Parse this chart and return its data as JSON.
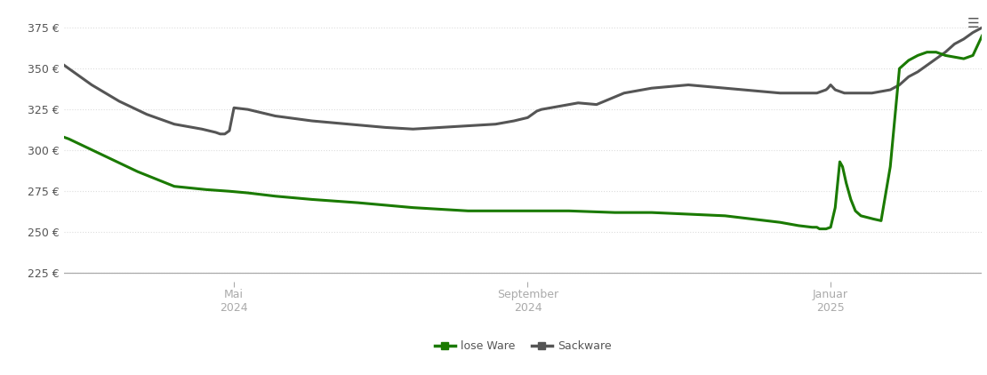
{
  "background_color": "#ffffff",
  "grid_color": "#dddddd",
  "ylim": [
    220,
    385
  ],
  "yticks": [
    225,
    250,
    275,
    300,
    325,
    350,
    375
  ],
  "x_tick_labels": [
    [
      "Mai\n2024",
      0.185
    ],
    [
      "September\n2024",
      0.505
    ],
    [
      "Januar\n2025",
      0.835
    ]
  ],
  "legend_labels": [
    "lose Ware",
    "Sackware"
  ],
  "lose_ware_color": "#1a7a00",
  "sackware_color": "#555555",
  "lose_ware_x": [
    0.0,
    0.005,
    0.02,
    0.05,
    0.08,
    0.12,
    0.155,
    0.18,
    0.2,
    0.23,
    0.27,
    0.32,
    0.38,
    0.44,
    0.5,
    0.55,
    0.6,
    0.64,
    0.68,
    0.72,
    0.75,
    0.78,
    0.8,
    0.815,
    0.82,
    0.823,
    0.826,
    0.83,
    0.835,
    0.84,
    0.845,
    0.848,
    0.852,
    0.857,
    0.862,
    0.868,
    0.875,
    0.882,
    0.89,
    0.9,
    0.91,
    0.92,
    0.93,
    0.94,
    0.95,
    0.96,
    0.97,
    0.98,
    0.99,
    1.0
  ],
  "lose_ware_y": [
    308,
    307,
    303,
    295,
    287,
    278,
    276,
    275,
    274,
    272,
    270,
    268,
    265,
    263,
    263,
    263,
    262,
    262,
    261,
    260,
    258,
    256,
    254,
    253,
    253,
    252,
    252,
    252,
    253,
    265,
    293,
    290,
    280,
    270,
    263,
    260,
    259,
    258,
    257,
    290,
    350,
    355,
    358,
    360,
    360,
    358,
    357,
    356,
    358,
    370
  ],
  "sackware_x": [
    0.0,
    0.01,
    0.03,
    0.06,
    0.09,
    0.12,
    0.15,
    0.165,
    0.17,
    0.175,
    0.18,
    0.185,
    0.2,
    0.23,
    0.27,
    0.31,
    0.35,
    0.38,
    0.41,
    0.44,
    0.47,
    0.49,
    0.505,
    0.51,
    0.515,
    0.52,
    0.53,
    0.54,
    0.56,
    0.58,
    0.61,
    0.64,
    0.66,
    0.68,
    0.7,
    0.72,
    0.74,
    0.76,
    0.78,
    0.8,
    0.815,
    0.82,
    0.825,
    0.83,
    0.832,
    0.835,
    0.84,
    0.85,
    0.86,
    0.87,
    0.88,
    0.89,
    0.9,
    0.91,
    0.92,
    0.93,
    0.94,
    0.95,
    0.96,
    0.97,
    0.98,
    0.99,
    1.0
  ],
  "sackware_y": [
    352,
    348,
    340,
    330,
    322,
    316,
    313,
    311,
    310,
    310,
    312,
    326,
    325,
    321,
    318,
    316,
    314,
    313,
    314,
    315,
    316,
    318,
    320,
    322,
    324,
    325,
    326,
    327,
    329,
    328,
    335,
    338,
    339,
    340,
    339,
    338,
    337,
    336,
    335,
    335,
    335,
    335,
    336,
    337,
    338,
    340,
    337,
    335,
    335,
    335,
    335,
    336,
    337,
    340,
    345,
    348,
    352,
    356,
    360,
    365,
    368,
    372,
    375
  ]
}
